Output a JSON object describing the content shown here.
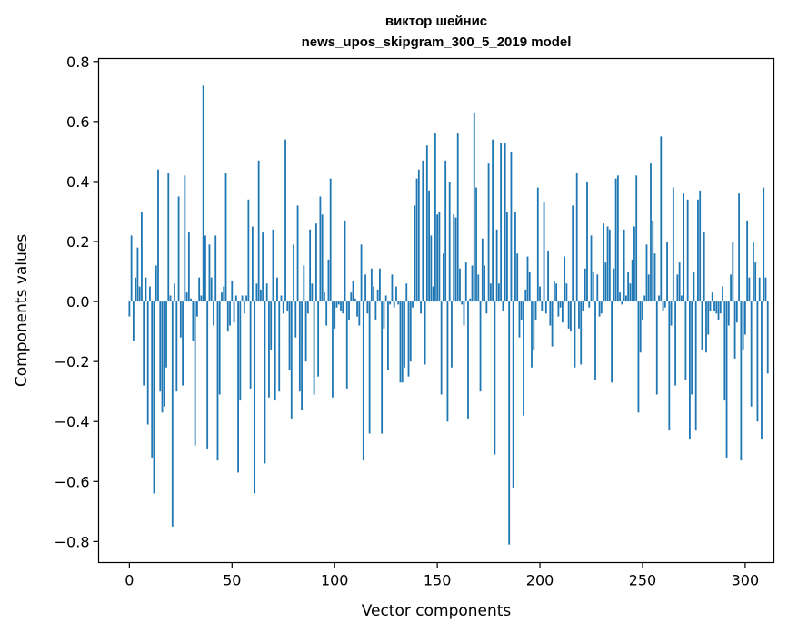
{
  "chart_data": {
    "type": "bar",
    "title_line1": "виктор шейнис",
    "title_line2": "news_upos_skipgram_300_5_2019 model",
    "xlabel": "Vector components",
    "ylabel": "Components values",
    "xlim": [
      -15,
      314
    ],
    "ylim": [
      -0.87,
      0.81
    ],
    "x_ticks": [
      0,
      50,
      100,
      150,
      200,
      250,
      300
    ],
    "x_tick_labels": [
      "0",
      "50",
      "100",
      "150",
      "200",
      "250",
      "300"
    ],
    "y_ticks": [
      0.8,
      0.6,
      0.4,
      0.2,
      0.0,
      -0.2,
      -0.4,
      -0.6,
      -0.8
    ],
    "y_tick_labels": [
      "0.8",
      "0.6",
      "0.4",
      "0.2",
      "0.0",
      "−0.2",
      "−0.4",
      "−0.6",
      "−0.8"
    ],
    "bar_color": "#1f77b4",
    "grid": false,
    "values": [
      -0.05,
      0.22,
      -0.13,
      0.08,
      0.18,
      0.05,
      0.3,
      -0.28,
      0.08,
      -0.41,
      0.05,
      -0.52,
      -0.64,
      0.12,
      0.44,
      -0.3,
      -0.37,
      -0.35,
      -0.22,
      0.43,
      0.02,
      -0.75,
      0.06,
      -0.3,
      0.35,
      -0.12,
      -0.28,
      0.42,
      0.03,
      0.23,
      0.01,
      -0.13,
      -0.48,
      -0.05,
      0.08,
      0.02,
      0.72,
      0.22,
      -0.49,
      0.19,
      0.08,
      -0.08,
      0.22,
      -0.53,
      -0.31,
      0.03,
      0.05,
      0.43,
      -0.1,
      -0.08,
      0.07,
      -0.07,
      0.02,
      -0.57,
      -0.33,
      0.02,
      -0.04,
      0.02,
      0.34,
      -0.29,
      0.25,
      -0.64,
      0.06,
      0.47,
      0.04,
      0.23,
      -0.54,
      0.06,
      -0.32,
      -0.16,
      0.24,
      -0.33,
      0.08,
      -0.3,
      0.02,
      -0.04,
      0.54,
      -0.03,
      -0.23,
      -0.39,
      0.19,
      -0.12,
      0.32,
      -0.3,
      -0.36,
      0.12,
      -0.2,
      -0.04,
      0.24,
      0.06,
      -0.31,
      0.26,
      -0.25,
      0.35,
      0.29,
      0.03,
      -0.08,
      0.14,
      0.41,
      -0.32,
      -0.09,
      -0.02,
      -0.01,
      -0.03,
      -0.04,
      0.27,
      -0.29,
      -0.06,
      0.03,
      0.07,
      0.01,
      -0.05,
      -0.08,
      0.19,
      -0.53,
      0.09,
      -0.04,
      -0.44,
      0.11,
      0.05,
      -0.06,
      0.04,
      0.11,
      -0.44,
      -0.09,
      0.02,
      -0.23,
      -0.01,
      0.09,
      -0.02,
      0.05,
      -0.01,
      -0.27,
      -0.27,
      -0.22,
      0.06,
      -0.25,
      -0.2,
      -0.02,
      0.32,
      0.41,
      0.44,
      -0.04,
      0.47,
      -0.21,
      0.52,
      0.37,
      0.22,
      0.05,
      0.56,
      0.29,
      0.3,
      -0.31,
      0.16,
      0.47,
      -0.4,
      0.4,
      -0.22,
      0.29,
      0.28,
      0.56,
      0.11,
      -0.01,
      -0.08,
      0.13,
      -0.39,
      0.01,
      0.12,
      0.63,
      0.38,
      0.09,
      -0.3,
      0.21,
      0.12,
      -0.04,
      0.46,
      0.06,
      0.54,
      -0.51,
      0.24,
      0.06,
      0.53,
      -0.03,
      0.53,
      0.3,
      -0.81,
      0.5,
      -0.62,
      0.3,
      0.16,
      -0.12,
      -0.06,
      -0.38,
      0.04,
      0.15,
      0.1,
      -0.22,
      -0.16,
      -0.06,
      0.38,
      0.05,
      -0.03,
      0.33,
      -0.04,
      0.17,
      -0.08,
      -0.15,
      0.07,
      0.06,
      -0.05,
      -0.02,
      -0.07,
      0.15,
      0.06,
      -0.09,
      -0.1,
      0.32,
      -0.22,
      0.43,
      -0.09,
      -0.21,
      -0.03,
      0.11,
      0.4,
      -0.02,
      0.22,
      0.1,
      -0.26,
      0.09,
      -0.05,
      -0.04,
      0.26,
      0.13,
      0.25,
      0.24,
      -0.27,
      0.11,
      0.41,
      0.42,
      0.03,
      -0.01,
      0.24,
      0.02,
      0.1,
      0.06,
      0.14,
      0.25,
      0.42,
      -0.37,
      -0.17,
      -0.06,
      0.02,
      0.19,
      0.09,
      0.46,
      0.27,
      0.16,
      -0.31,
      0.02,
      0.55,
      -0.03,
      -0.02,
      0.2,
      -0.43,
      -0.08,
      0.38,
      -0.28,
      0.09,
      0.13,
      0.02,
      0.36,
      -0.26,
      0.34,
      -0.46,
      -0.31,
      0.1,
      -0.43,
      0.34,
      0.37,
      -0.16,
      0.23,
      -0.17,
      -0.11,
      -0.03,
      0.03,
      -0.03,
      -0.04,
      -0.06,
      -0.04,
      0.05,
      -0.33,
      -0.52,
      -0.08,
      0.09,
      0.2,
      -0.19,
      -0.07,
      0.36,
      -0.53,
      -0.16,
      -0.11,
      0.27,
      0.08,
      -0.35,
      0.2,
      0.13,
      -0.4,
      0.08,
      -0.46,
      0.38,
      0.08,
      -0.24
    ]
  }
}
